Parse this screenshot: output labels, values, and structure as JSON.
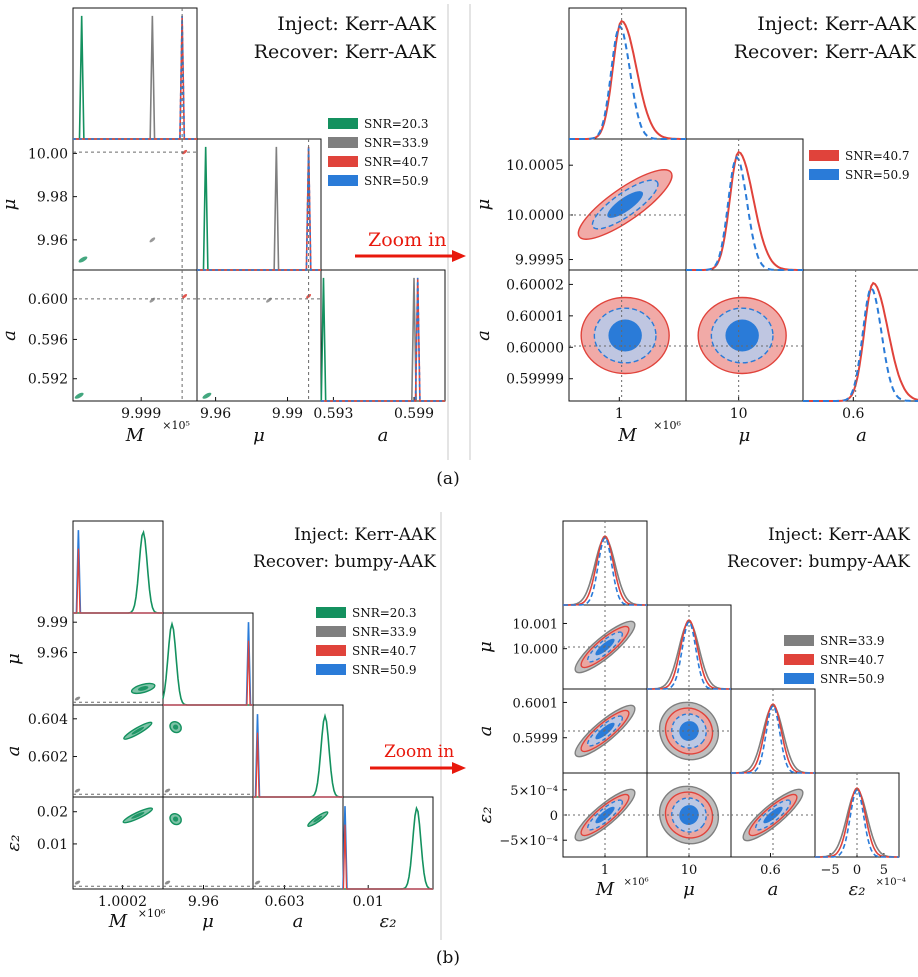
{
  "colors": {
    "snr_20_3": "#14915f",
    "snr_33_9": "#7f7f7f",
    "snr_40_7": "#e0433b",
    "snr_50_9": "#2a7bd8",
    "guide": "#6a6a6a",
    "arrow": "#e8180c"
  },
  "arrow_label": "Zoom in",
  "chart_data": [
    {
      "id": "a-left",
      "type": "corner",
      "annotation": [
        "Inject:  Kerr-AAK",
        "Recover:  Kerr-AAK"
      ],
      "legend": [
        "SNR=20.3",
        "SNR=33.9",
        "SNR=40.7",
        "SNR=50.9"
      ],
      "params": [
        "M",
        "μ",
        "a"
      ],
      "axis_labels": {
        "x": [
          "M",
          "μ",
          "a"
        ],
        "y": [
          "μ",
          "a"
        ]
      },
      "x_ticks": [
        [
          "9.999"
        ],
        [
          "9.96",
          "9.99"
        ],
        [
          "0.593",
          "0.599"
        ]
      ],
      "y_ticks": [
        [
          "10.00",
          "9.98",
          "9.96"
        ],
        [
          "0.600",
          "0.596",
          "0.592"
        ]
      ],
      "multipliers": [
        "×10⁵",
        "",
        ""
      ],
      "series": [
        {
          "snr": "SNR=20.3",
          "peaks": [
            9.9983,
            9.9535,
            0.5906
          ]
        },
        {
          "snr": "SNR=33.9",
          "peaks": [
            9.9994,
            9.9845,
            0.5995
          ]
        },
        {
          "snr": "SNR=40.7",
          "peaks": [
            10.0,
            10.0,
            0.6
          ]
        },
        {
          "snr": "SNR=50.9",
          "peaks": [
            10.0,
            10.0,
            0.6
          ]
        }
      ],
      "truth": [
        10.0,
        10.0,
        0.6
      ]
    },
    {
      "id": "a-right",
      "type": "corner",
      "annotation": [
        "Inject:  Kerr-AAK",
        "Recover:  Kerr-AAK"
      ],
      "legend": [
        "SNR=40.7",
        "SNR=50.9"
      ],
      "params": [
        "M",
        "μ",
        "a"
      ],
      "axis_labels": {
        "x": [
          "M",
          "μ",
          "a"
        ],
        "y": [
          "μ",
          "a"
        ]
      },
      "x_ticks": [
        [
          "1"
        ],
        [
          "10"
        ],
        [
          "0.6"
        ]
      ],
      "y_ticks": [
        [
          "10.0005",
          "10.0000",
          "9.9995"
        ],
        [
          "0.60002",
          "0.60001",
          "0.60000",
          "0.59999"
        ]
      ],
      "multipliers": [
        "×10⁶",
        "",
        ""
      ],
      "series": [
        {
          "snr": "SNR=40.7",
          "style": "solid"
        },
        {
          "snr": "SNR=50.9",
          "style": "dashed"
        }
      ],
      "truth": [
        1.0,
        10.0,
        0.6
      ]
    },
    {
      "id": "b-left",
      "type": "corner",
      "annotation": [
        "Inject:  Kerr-AAK",
        "Recover:  bumpy-AAK"
      ],
      "legend": [
        "SNR=20.3",
        "SNR=33.9",
        "SNR=40.7",
        "SNR=50.9"
      ],
      "params": [
        "M",
        "μ",
        "a",
        "ε₂"
      ],
      "axis_labels": {
        "x": [
          "M",
          "μ",
          "a",
          "ε₂"
        ],
        "y": [
          "μ",
          "a",
          "ε₂"
        ]
      },
      "x_ticks": [
        [
          "1.0002"
        ],
        [
          "9.96"
        ],
        [
          "0.603"
        ],
        [
          "0.01"
        ]
      ],
      "y_ticks": [
        [
          "9.99",
          "9.96"
        ],
        [
          "0.604",
          "0.602"
        ],
        [
          "0.02",
          "0.01"
        ]
      ],
      "multipliers": [
        "×10⁶",
        "",
        "",
        ""
      ],
      "series": [
        {
          "snr": "SNR=20.3",
          "peaks": [
            1.00025,
            9.955,
            0.6042,
            0.022
          ]
        },
        {
          "snr": "SNR=33.9",
          "peaks": [
            1.0,
            10.0,
            0.6,
            0.0
          ]
        },
        {
          "snr": "SNR=40.7",
          "peaks": [
            1.0,
            10.0,
            0.6,
            0.0
          ]
        },
        {
          "snr": "SNR=50.9",
          "peaks": [
            1.0,
            10.0,
            0.6,
            0.0
          ]
        }
      ],
      "truth": [
        1.0,
        10.0,
        0.6,
        0.0
      ]
    },
    {
      "id": "b-right",
      "type": "corner",
      "annotation": [
        "Inject:  Kerr-AAK",
        "Recover:  bumpy-AAK"
      ],
      "legend": [
        "SNR=33.9",
        "SNR=40.7",
        "SNR=50.9"
      ],
      "params": [
        "M",
        "μ",
        "a",
        "ε₂"
      ],
      "axis_labels": {
        "x": [
          "M",
          "μ",
          "a",
          "ε₂"
        ],
        "y": [
          "μ",
          "a",
          "ε₂"
        ]
      },
      "x_ticks": [
        [
          "1"
        ],
        [
          "10"
        ],
        [
          "0.6"
        ],
        [
          "−5",
          "0",
          "5"
        ]
      ],
      "y_ticks": [
        [
          "10.001",
          "10.000"
        ],
        [
          "0.6001",
          "0.5999"
        ],
        [
          "5×10⁻⁴",
          "0",
          "−5×10⁻⁴"
        ]
      ],
      "multipliers": [
        "×10⁶",
        "",
        "",
        "×10⁻⁴"
      ],
      "series": [
        {
          "snr": "SNR=33.9",
          "style": "solid"
        },
        {
          "snr": "SNR=40.7",
          "style": "solid"
        },
        {
          "snr": "SNR=50.9",
          "style": "dashed"
        }
      ],
      "truth": [
        1.0,
        10.0,
        0.6,
        0.0
      ]
    }
  ],
  "captions": [
    "(a)",
    "(b)"
  ]
}
